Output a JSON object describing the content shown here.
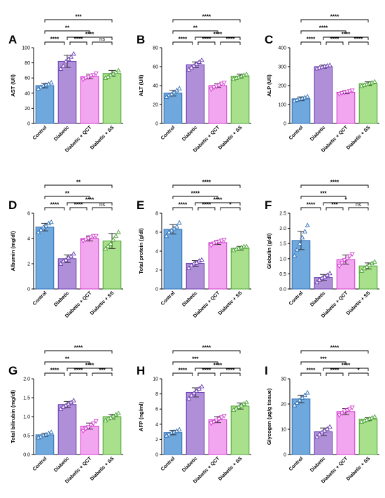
{
  "chart_data": [
    {
      "type": "bar",
      "panel": "A",
      "ylabel": "AST (U/l)",
      "categories": [
        "Control",
        "Diabetic",
        "Diabetic + QCT",
        "Diabetic + SS"
      ],
      "values": [
        50,
        82,
        62,
        66
      ],
      "errors": [
        3,
        8,
        3,
        4
      ],
      "ylim": [
        0,
        100
      ],
      "yticks": [
        0,
        20,
        40,
        60,
        80,
        100
      ],
      "points": [
        [
          46,
          48,
          50,
          51,
          52,
          54
        ],
        [
          72,
          76,
          82,
          85,
          88,
          92
        ],
        [
          58,
          60,
          61,
          63,
          64,
          66
        ],
        [
          60,
          62,
          64,
          66,
          68,
          70
        ]
      ],
      "comparisons": [
        {
          "from": 0,
          "to": 3,
          "label": "***"
        },
        {
          "from": 0,
          "to": 2,
          "label": "**"
        },
        {
          "from": 1,
          "to": 3,
          "label": "****"
        },
        {
          "from": 0,
          "to": 1,
          "label": "****"
        },
        {
          "from": 1,
          "to": 2,
          "label": "****"
        },
        {
          "from": 2,
          "to": 3,
          "label": "ns"
        }
      ]
    },
    {
      "type": "bar",
      "panel": "B",
      "ylabel": "ALT (U/l)",
      "categories": [
        "Control",
        "Diabetic",
        "Diabetic + QCT",
        "Diabetic + SS"
      ],
      "values": [
        32,
        62,
        40,
        50
      ],
      "errors": [
        3,
        3,
        2,
        2
      ],
      "ylim": [
        0,
        80
      ],
      "yticks": [
        0,
        20,
        40,
        60,
        80
      ],
      "points": [
        [
          28,
          30,
          31,
          33,
          35,
          37
        ],
        [
          57,
          59,
          61,
          63,
          65,
          67
        ],
        [
          36,
          38,
          39,
          40,
          42,
          43
        ],
        [
          47,
          48,
          49,
          50,
          51,
          52
        ]
      ],
      "comparisons": [
        {
          "from": 0,
          "to": 3,
          "label": "****"
        },
        {
          "from": 0,
          "to": 2,
          "label": "**"
        },
        {
          "from": 1,
          "to": 3,
          "label": "****"
        },
        {
          "from": 0,
          "to": 1,
          "label": "****"
        },
        {
          "from": 1,
          "to": 2,
          "label": "****"
        },
        {
          "from": 2,
          "to": 3,
          "label": "****"
        }
      ]
    },
    {
      "type": "bar",
      "panel": "C",
      "ylabel": "ALP (U/l)",
      "categories": [
        "Control",
        "Diabetic",
        "Diabetic + QCT",
        "Diabetic + SS"
      ],
      "values": [
        130,
        300,
        165,
        210
      ],
      "errors": [
        10,
        8,
        8,
        10
      ],
      "ylim": [
        0,
        400
      ],
      "yticks": [
        0,
        100,
        200,
        300,
        400
      ],
      "points": [
        [
          120,
          125,
          130,
          133,
          137,
          142
        ],
        [
          290,
          295,
          298,
          302,
          305,
          308
        ],
        [
          155,
          160,
          163,
          167,
          170,
          174
        ],
        [
          198,
          203,
          208,
          212,
          216,
          221
        ]
      ],
      "comparisons": [
        {
          "from": 0,
          "to": 3,
          "label": "****"
        },
        {
          "from": 0,
          "to": 2,
          "label": "****"
        },
        {
          "from": 1,
          "to": 3,
          "label": "****"
        },
        {
          "from": 0,
          "to": 1,
          "label": "****"
        },
        {
          "from": 1,
          "to": 2,
          "label": "****"
        },
        {
          "from": 2,
          "to": 3,
          "label": "****"
        }
      ]
    },
    {
      "type": "bar",
      "panel": "D",
      "ylabel": "Albumin (mg/dl)",
      "categories": [
        "Control",
        "Diabetic",
        "Diabetic + QCT",
        "Diabetic + SS"
      ],
      "values": [
        4.9,
        2.4,
        4.0,
        3.8
      ],
      "errors": [
        0.3,
        0.3,
        0.2,
        0.6
      ],
      "ylim": [
        0,
        6
      ],
      "yticks": [
        0,
        2,
        4,
        6
      ],
      "points": [
        [
          4.5,
          4.7,
          4.9,
          5.0,
          5.2,
          5.3
        ],
        [
          2.0,
          2.2,
          2.3,
          2.5,
          2.6,
          2.8
        ],
        [
          3.8,
          3.9,
          4.0,
          4.1,
          4.2,
          4.2
        ],
        [
          3.2,
          3.4,
          3.6,
          3.9,
          4.2,
          4.5
        ]
      ],
      "comparisons": [
        {
          "from": 0,
          "to": 3,
          "label": "**"
        },
        {
          "from": 0,
          "to": 2,
          "label": "**"
        },
        {
          "from": 1,
          "to": 3,
          "label": "****"
        },
        {
          "from": 0,
          "to": 1,
          "label": "****"
        },
        {
          "from": 1,
          "to": 2,
          "label": "****"
        },
        {
          "from": 2,
          "to": 3,
          "label": "ns"
        }
      ]
    },
    {
      "type": "bar",
      "panel": "E",
      "ylabel": "Total protein (g/dl)",
      "categories": [
        "Control",
        "Diabetic",
        "Diabetic + QCT",
        "Diabetic + SS"
      ],
      "values": [
        6.3,
        2.7,
        4.9,
        4.3
      ],
      "errors": [
        0.5,
        0.3,
        0.2,
        0.2
      ],
      "ylim": [
        0,
        8
      ],
      "yticks": [
        0,
        2,
        4,
        6,
        8
      ],
      "points": [
        [
          5.6,
          6.0,
          6.2,
          6.4,
          6.6,
          7.0
        ],
        [
          2.2,
          2.5,
          2.7,
          2.8,
          3.0,
          3.1
        ],
        [
          4.6,
          4.8,
          4.9,
          5.0,
          5.1,
          5.2
        ],
        [
          4.1,
          4.2,
          4.3,
          4.4,
          4.5,
          4.5
        ]
      ],
      "comparisons": [
        {
          "from": 0,
          "to": 3,
          "label": "****"
        },
        {
          "from": 0,
          "to": 2,
          "label": "****"
        },
        {
          "from": 1,
          "to": 3,
          "label": "****"
        },
        {
          "from": 0,
          "to": 1,
          "label": "****"
        },
        {
          "from": 1,
          "to": 2,
          "label": "****"
        },
        {
          "from": 2,
          "to": 3,
          "label": "*"
        }
      ]
    },
    {
      "type": "bar",
      "panel": "F",
      "ylabel": "Globulin (g/dl)",
      "categories": [
        "Control",
        "Diabetic",
        "Diabetic + QCT",
        "Diabetic + SS"
      ],
      "values": [
        1.6,
        0.38,
        0.97,
        0.76
      ],
      "errors": [
        0.3,
        0.1,
        0.15,
        0.1
      ],
      "ylim": [
        0,
        2.5
      ],
      "yticks": [
        0,
        0.5,
        1,
        1.5,
        2,
        2.5
      ],
      "yticklabels": [
        "0.0",
        "0.5",
        "1.0",
        "1.5",
        "2.0",
        "2.5"
      ],
      "points": [
        [
          1.1,
          1.3,
          1.5,
          1.7,
          1.9,
          2.1
        ],
        [
          0.22,
          0.3,
          0.36,
          0.4,
          0.46,
          0.52
        ],
        [
          0.75,
          0.85,
          0.95,
          1.0,
          1.08,
          1.15
        ],
        [
          0.6,
          0.68,
          0.74,
          0.8,
          0.85,
          0.9
        ]
      ],
      "comparisons": [
        {
          "from": 0,
          "to": 3,
          "label": "****"
        },
        {
          "from": 0,
          "to": 2,
          "label": "***"
        },
        {
          "from": 1,
          "to": 3,
          "label": "*"
        },
        {
          "from": 0,
          "to": 1,
          "label": "****"
        },
        {
          "from": 1,
          "to": 2,
          "label": "***"
        },
        {
          "from": 2,
          "to": 3,
          "label": "ns"
        }
      ]
    },
    {
      "type": "bar",
      "panel": "G",
      "ylabel": "Total bilirubin (mg/dl)",
      "categories": [
        "Control",
        "Diabetic",
        "Diabetic + QCT",
        "Diabetic + SS"
      ],
      "values": [
        0.52,
        1.32,
        0.75,
        1.0
      ],
      "errors": [
        0.04,
        0.08,
        0.08,
        0.06
      ],
      "ylim": [
        0,
        2
      ],
      "yticks": [
        0,
        0.5,
        1,
        1.5,
        2
      ],
      "yticklabels": [
        "0.0",
        "0.5",
        "1.0",
        "1.5",
        "2.0"
      ],
      "points": [
        [
          0.45,
          0.48,
          0.51,
          0.53,
          0.56,
          0.59
        ],
        [
          1.2,
          1.26,
          1.3,
          1.34,
          1.38,
          1.43
        ],
        [
          0.62,
          0.68,
          0.72,
          0.78,
          0.82,
          0.88
        ],
        [
          0.9,
          0.95,
          0.98,
          1.02,
          1.06,
          1.09
        ]
      ],
      "comparisons": [
        {
          "from": 0,
          "to": 3,
          "label": "****"
        },
        {
          "from": 0,
          "to": 2,
          "label": "**"
        },
        {
          "from": 1,
          "to": 3,
          "label": "****"
        },
        {
          "from": 0,
          "to": 1,
          "label": "****"
        },
        {
          "from": 1,
          "to": 2,
          "label": "****"
        },
        {
          "from": 2,
          "to": 3,
          "label": "***"
        }
      ]
    },
    {
      "type": "bar",
      "panel": "H",
      "ylabel": "AFP (ng/ml)",
      "categories": [
        "Control",
        "Diabetic",
        "Diabetic + QCT",
        "Diabetic + SS"
      ],
      "values": [
        2.9,
        8.2,
        4.6,
        6.4
      ],
      "errors": [
        0.3,
        0.6,
        0.4,
        0.4
      ],
      "ylim": [
        0,
        10
      ],
      "yticks": [
        0,
        2,
        4,
        6,
        8,
        10
      ],
      "points": [
        [
          2.5,
          2.7,
          2.9,
          3.0,
          3.1,
          3.3
        ],
        [
          7.4,
          7.8,
          8.1,
          8.4,
          8.7,
          9.0
        ],
        [
          4.1,
          4.3,
          4.5,
          4.7,
          4.9,
          5.1
        ],
        [
          5.9,
          6.1,
          6.3,
          6.5,
          6.7,
          6.9
        ]
      ],
      "comparisons": [
        {
          "from": 0,
          "to": 3,
          "label": "****"
        },
        {
          "from": 0,
          "to": 2,
          "label": "***"
        },
        {
          "from": 1,
          "to": 3,
          "label": "****"
        },
        {
          "from": 0,
          "to": 1,
          "label": "****"
        },
        {
          "from": 1,
          "to": 2,
          "label": "****"
        },
        {
          "from": 2,
          "to": 3,
          "label": "****"
        }
      ]
    },
    {
      "type": "bar",
      "panel": "I",
      "ylabel": "Glycogen (µg/g tissue)",
      "categories": [
        "Control",
        "Diabetic",
        "Diabetic + QCT",
        "Diabetic + SS"
      ],
      "values": [
        22,
        9,
        17,
        14
      ],
      "errors": [
        1.5,
        1.5,
        1.2,
        0.6
      ],
      "ylim": [
        0,
        30
      ],
      "yticks": [
        0,
        10,
        20,
        30
      ],
      "points": [
        [
          19.5,
          20.5,
          21.5,
          22.5,
          23.5,
          24.5
        ],
        [
          7,
          8,
          8.8,
          9.5,
          10.2,
          11
        ],
        [
          15.5,
          16.3,
          17,
          17.5,
          18,
          18.6
        ],
        [
          13,
          13.4,
          13.8,
          14.2,
          14.6,
          15
        ]
      ],
      "comparisons": [
        {
          "from": 0,
          "to": 3,
          "label": "****"
        },
        {
          "from": 0,
          "to": 2,
          "label": "***"
        },
        {
          "from": 1,
          "to": 3,
          "label": "****"
        },
        {
          "from": 0,
          "to": 1,
          "label": "****"
        },
        {
          "from": 1,
          "to": 2,
          "label": "****"
        },
        {
          "from": 2,
          "to": 3,
          "label": "*"
        }
      ]
    }
  ],
  "colors": {
    "fill": [
      "#6fa8dc",
      "#b08fd9",
      "#f3a6f0",
      "#a9e08b"
    ],
    "stroke": [
      "#2f6fb5",
      "#6a3fb0",
      "#d13bcf",
      "#4aa335"
    ],
    "error": "#333333",
    "axis": "#000000"
  },
  "markers": [
    "triangle-up",
    "triangle-up",
    "triangle-down",
    "triangle-up"
  ]
}
